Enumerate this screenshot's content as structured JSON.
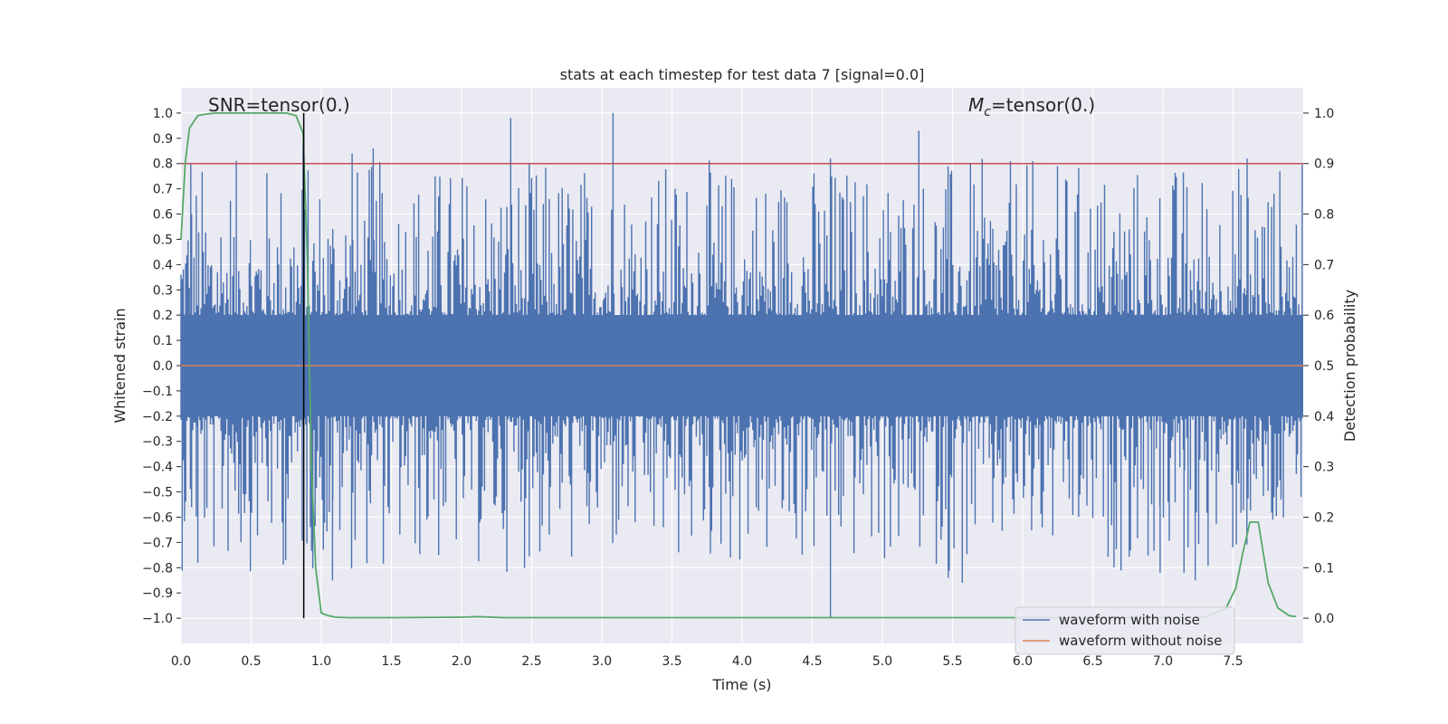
{
  "chart_data": {
    "type": "line",
    "title": "stats at each timestep for test data 7 [signal=0.0]",
    "xlabel": "Time (s)",
    "ylabel_left": "Whitened strain",
    "ylabel_right": "Detection probability",
    "xlim": [
      0.0,
      8.0
    ],
    "ylim_left": [
      -1.1,
      1.1
    ],
    "ylim_right": [
      -0.05,
      1.05
    ],
    "x_ticks": [
      0.0,
      0.5,
      1.0,
      1.5,
      2.0,
      2.5,
      3.0,
      3.5,
      4.0,
      4.5,
      5.0,
      5.5,
      6.0,
      6.5,
      7.0,
      7.5
    ],
    "x_tick_labels": [
      "0.0",
      "0.5",
      "1.0",
      "1.5",
      "2.0",
      "2.5",
      "3.0",
      "3.5",
      "4.0",
      "4.5",
      "5.0",
      "5.5",
      "6.0",
      "6.5",
      "7.0",
      "7.5"
    ],
    "y_ticks_left": [
      1.0,
      0.9,
      0.8,
      0.7,
      0.6,
      0.5,
      0.4,
      0.3,
      0.2,
      0.1,
      0.0,
      -0.1,
      -0.2,
      -0.3,
      -0.4,
      -0.5,
      -0.6,
      -0.7,
      -0.8,
      -0.9,
      -1.0
    ],
    "y_tick_labels_left": [
      "1.0",
      "0.9",
      "0.8",
      "0.7",
      "0.6",
      "0.5",
      "0.4",
      "0.3",
      "0.2",
      "0.1",
      "0.0",
      "−0.1",
      "−0.2",
      "−0.3",
      "−0.4",
      "−0.5",
      "−0.6",
      "−0.7",
      "−0.8",
      "−0.9",
      "−1.0"
    ],
    "y_ticks_right": [
      1.0,
      0.9,
      0.8,
      0.7,
      0.6,
      0.5,
      0.4,
      0.3,
      0.2,
      0.1,
      0.0
    ],
    "y_tick_labels_right": [
      "1.0",
      "0.9",
      "0.8",
      "0.7",
      "0.6",
      "0.5",
      "0.4",
      "0.3",
      "0.2",
      "0.1",
      "0.0"
    ],
    "grid": true,
    "annotations": {
      "snr": "SNR=tensor(0.)",
      "mc_symbol": "M",
      "mc_subscript": "c",
      "mc_value": "=tensor(0.)"
    },
    "threshold": {
      "value": 0.9,
      "axis": "right",
      "color": "#c44e52"
    },
    "marker_line": {
      "x": 0.875,
      "color": "#000000"
    },
    "series": [
      {
        "name": "waveform with noise",
        "color": "#4c72b0",
        "axis": "left",
        "kind": "noise-band",
        "core_amplitude": 0.2,
        "typical_peak": 0.5,
        "notable_peaks_up": [
          [
            0.07,
            0.8
          ],
          [
            0.87,
            0.88
          ],
          [
            1.22,
            0.84
          ],
          [
            1.37,
            0.86
          ],
          [
            2.35,
            0.98
          ],
          [
            3.08,
            1.0
          ],
          [
            4.63,
            0.82
          ],
          [
            5.26,
            0.93
          ],
          [
            7.6,
            0.82
          ]
        ],
        "notable_peaks_down": [
          [
            0.12,
            -0.78
          ],
          [
            1.08,
            -0.85
          ],
          [
            4.63,
            -1.0
          ],
          [
            5.47,
            -0.84
          ],
          [
            5.57,
            -0.86
          ],
          [
            6.98,
            -0.82
          ],
          [
            7.15,
            -0.82
          ],
          [
            7.23,
            -0.85
          ]
        ]
      },
      {
        "name": "waveform without noise",
        "color": "#dd8452",
        "axis": "left",
        "x": [
          0.0,
          8.0
        ],
        "y": [
          0.0,
          0.0
        ]
      },
      {
        "name": "detection probability",
        "color": "#55a868",
        "axis": "right",
        "x": [
          0.0,
          0.03,
          0.06,
          0.12,
          0.18,
          0.25,
          0.5,
          0.75,
          0.82,
          0.87,
          0.9,
          0.93,
          0.96,
          1.0,
          1.05,
          1.1,
          1.2,
          1.5,
          2.0,
          2.12,
          2.3,
          3.0,
          4.0,
          5.0,
          6.0,
          7.0,
          7.3,
          7.45,
          7.52,
          7.57,
          7.62,
          7.68,
          7.75,
          7.82,
          7.9,
          7.95
        ],
        "y": [
          0.75,
          0.9,
          0.97,
          0.995,
          0.998,
          1.0,
          1.0,
          1.0,
          0.995,
          0.96,
          0.72,
          0.3,
          0.1,
          0.01,
          0.005,
          0.002,
          0.001,
          0.001,
          0.002,
          0.003,
          0.001,
          0.001,
          0.001,
          0.001,
          0.001,
          0.001,
          0.002,
          0.02,
          0.06,
          0.13,
          0.19,
          0.19,
          0.07,
          0.02,
          0.005,
          0.003
        ]
      }
    ],
    "legend": {
      "placement": "bottom-right",
      "entries": [
        {
          "label": "waveform with noise",
          "color": "#4c72b0"
        },
        {
          "label": "waveform without noise",
          "color": "#dd8452"
        }
      ]
    }
  }
}
